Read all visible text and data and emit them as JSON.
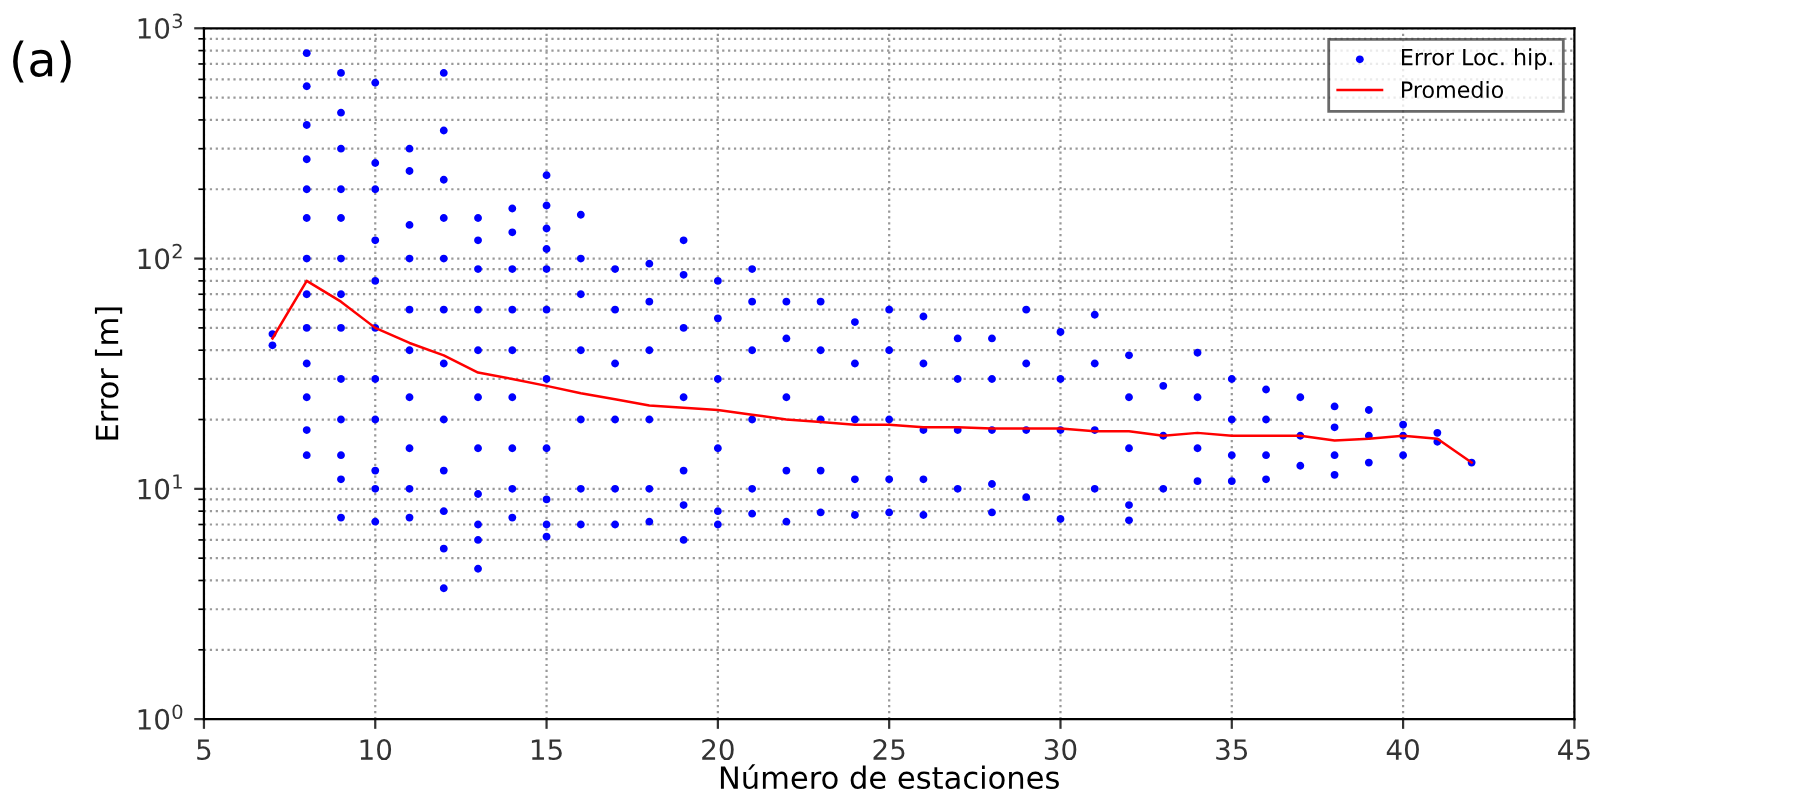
{
  "chart_data": {
    "type": "scatter",
    "xlabel": "Número de estaciones",
    "ylabel": "Error [m]",
    "annotations": [
      "(a)"
    ],
    "log": "y",
    "grid": true,
    "legend": "top right",
    "xlim": [
      5,
      45
    ],
    "xticks": [
      5,
      10,
      15,
      20,
      25,
      30,
      35,
      40,
      45
    ],
    "ylim": [
      1,
      1000
    ],
    "yticks": [
      {
        "value": 1,
        "label": "10$^{0}$"
      },
      {
        "value": 10,
        "label": "10$^{1}$"
      },
      {
        "value": 100,
        "label": "10$^{2}$"
      },
      {
        "value": 1000,
        "label": "10$^{3}$"
      }
    ],
    "series": [
      {
        "name": "Error Loc. hip.",
        "type": "scatter",
        "color": "#0000ff",
        "marker": "circle",
        "x": [
          7,
          7,
          8,
          8,
          8,
          8,
          8,
          8,
          8,
          8,
          8,
          8,
          8,
          8,
          8,
          9,
          9,
          9,
          9,
          9,
          9,
          9,
          9,
          9,
          9,
          9,
          9,
          9,
          10,
          10,
          10,
          10,
          10,
          10,
          10,
          10,
          10,
          10,
          10,
          11,
          11,
          11,
          11,
          11,
          11,
          11,
          11,
          11,
          11,
          12,
          12,
          12,
          12,
          12,
          12,
          12,
          12,
          12,
          12,
          12,
          12,
          13,
          13,
          13,
          13,
          13,
          13,
          13,
          13,
          13,
          13,
          13,
          14,
          14,
          14,
          14,
          14,
          14,
          14,
          14,
          14,
          15,
          15,
          15,
          15,
          15,
          15,
          15,
          15,
          15,
          15,
          15,
          16,
          16,
          16,
          16,
          16,
          16,
          16,
          17,
          17,
          17,
          17,
          17,
          17,
          18,
          18,
          18,
          18,
          18,
          18,
          19,
          19,
          19,
          19,
          19,
          19,
          19,
          20,
          20,
          20,
          20,
          20,
          20,
          21,
          21,
          21,
          21,
          21,
          21,
          22,
          22,
          22,
          22,
          22,
          23,
          23,
          23,
          23,
          23,
          24,
          24,
          24,
          24,
          24,
          25,
          25,
          25,
          25,
          25,
          26,
          26,
          26,
          26,
          26,
          27,
          27,
          27,
          27,
          28,
          28,
          28,
          28,
          28,
          29,
          29,
          29,
          29,
          30,
          30,
          30,
          30,
          31,
          31,
          31,
          31,
          32,
          32,
          32,
          32,
          32,
          33,
          33,
          33,
          34,
          34,
          34,
          34,
          35,
          35,
          35,
          35,
          36,
          36,
          36,
          36,
          37,
          37,
          37,
          38,
          38,
          38,
          38,
          39,
          39,
          39,
          40,
          40,
          40,
          41,
          41,
          42
        ],
        "values": [
          47,
          42,
          780,
          560,
          380,
          270,
          200,
          150,
          100,
          70,
          50,
          35,
          25,
          18,
          14,
          640,
          430,
          300,
          200,
          150,
          100,
          70,
          50,
          30,
          20,
          14,
          11,
          7.5,
          580,
          260,
          200,
          120,
          80,
          50,
          30,
          20,
          12,
          10,
          7.2,
          300,
          240,
          140,
          100,
          60,
          40,
          25,
          15,
          10,
          7.5,
          640,
          360,
          220,
          150,
          100,
          60,
          35,
          20,
          12,
          8,
          5.5,
          3.7,
          150,
          120,
          90,
          60,
          40,
          25,
          15,
          9.5,
          7,
          6,
          4.5,
          165,
          130,
          90,
          60,
          40,
          25,
          15,
          10,
          7.5,
          230,
          170,
          135,
          110,
          90,
          60,
          30,
          15,
          9,
          7,
          6.2,
          155,
          100,
          70,
          40,
          20,
          10,
          7,
          90,
          60,
          35,
          20,
          10,
          7,
          95,
          65,
          40,
          20,
          10,
          7.2,
          120,
          85,
          50,
          25,
          12,
          8.5,
          6,
          80,
          55,
          30,
          15,
          8,
          7,
          90,
          65,
          40,
          20,
          10,
          7.8,
          65,
          45,
          25,
          12,
          7.2,
          65,
          40,
          20,
          12,
          7.9,
          53,
          35,
          20,
          11,
          7.7,
          60,
          40,
          20,
          11,
          7.9,
          56,
          35,
          18,
          11,
          7.7,
          45,
          30,
          18,
          10,
          45,
          30,
          18,
          10.5,
          7.9,
          60,
          35,
          18,
          9.2,
          48,
          30,
          18,
          7.4,
          57,
          35,
          18,
          10,
          38,
          25,
          15,
          8.5,
          7.3,
          28,
          17,
          10,
          39,
          25,
          15,
          10.8,
          30,
          20,
          14,
          10.8,
          27,
          20,
          14,
          11,
          25,
          17,
          12.6,
          22.8,
          18.5,
          14,
          11.5,
          22,
          17,
          13,
          19,
          17,
          14,
          17.5,
          16,
          13
        ]
      },
      {
        "name": "Promedio",
        "type": "line",
        "color": "#ff0000",
        "marker": "none",
        "line_style": "solid",
        "x": [
          7,
          8,
          9,
          10,
          11,
          12,
          13,
          14,
          15,
          16,
          17,
          18,
          19,
          20,
          21,
          22,
          23,
          24,
          25,
          26,
          27,
          28,
          29,
          30,
          31,
          32,
          33,
          34,
          35,
          36,
          37,
          38,
          39,
          40,
          41,
          42
        ],
        "values": [
          45,
          80,
          65,
          50,
          43,
          38,
          32,
          30,
          28,
          26,
          24.5,
          23,
          22.5,
          22,
          21,
          20,
          19.5,
          19,
          19,
          18.5,
          18.5,
          18.3,
          18.3,
          18.3,
          17.8,
          17.8,
          17,
          17.5,
          17,
          17,
          17,
          16.2,
          16.5,
          17,
          16.5,
          13
        ]
      }
    ]
  }
}
